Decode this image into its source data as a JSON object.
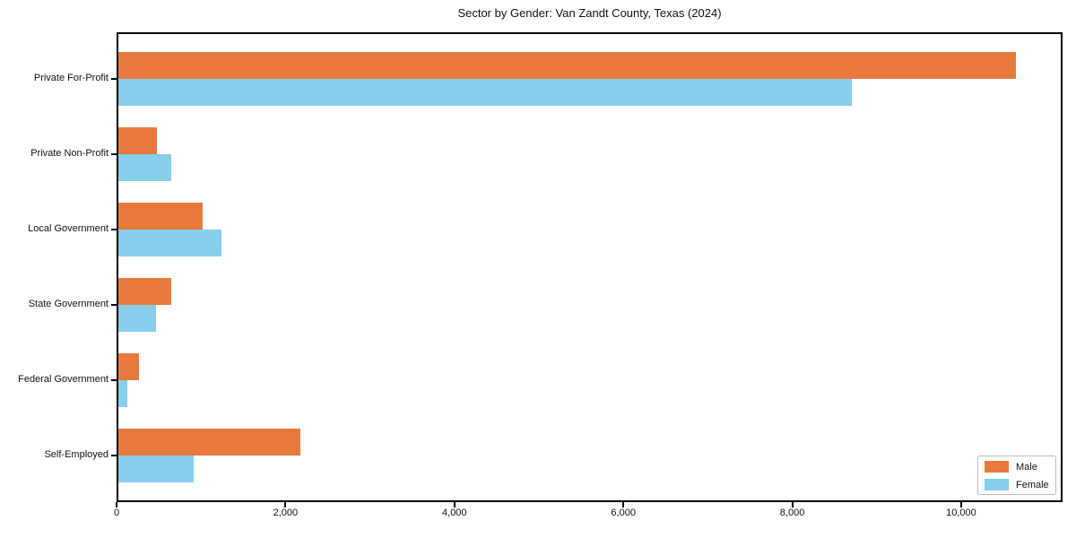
{
  "chart_data": {
    "type": "bar",
    "orientation": "horizontal",
    "title": "Sector by Gender: Van Zandt County, Texas (2024)",
    "xlabel": "",
    "ylabel": "",
    "grid": false,
    "background_color": "#ffffff",
    "frame_color": "#000000",
    "categories": [
      "Private For-Profit",
      "Private Non-Profit",
      "Local Government",
      "State Government",
      "Federal Government",
      "Self-Employed"
    ],
    "series": [
      {
        "name": "Male",
        "color": "#E8793D",
        "values": [
          10650,
          480,
          1020,
          650,
          260,
          2180
        ]
      },
      {
        "name": "Female",
        "color": "#87CEEB",
        "values": [
          8700,
          650,
          1240,
          470,
          130,
          910
        ]
      }
    ],
    "xlim": [
      0,
      11200
    ],
    "x_ticks": [
      {
        "value": 0,
        "label": "0"
      },
      {
        "value": 2000,
        "label": "2,000"
      },
      {
        "value": 4000,
        "label": "4,000"
      },
      {
        "value": 6000,
        "label": "6,000"
      },
      {
        "value": 8000,
        "label": "8,000"
      },
      {
        "value": 10000,
        "label": "10,000"
      }
    ],
    "legend": {
      "position": "lower-right",
      "entries": [
        "Male",
        "Female"
      ]
    }
  }
}
